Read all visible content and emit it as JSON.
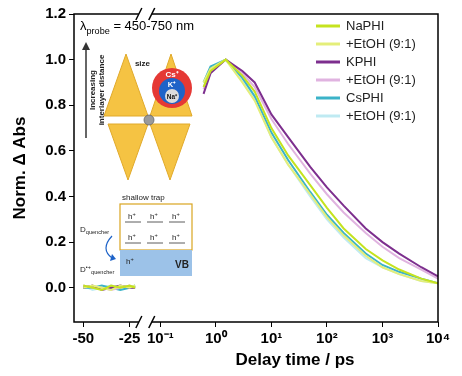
{
  "chart_data": {
    "type": "line",
    "annotation": {
      "main": "λ",
      "sub": "probe",
      "rest": " = 450-750 nm"
    },
    "xlabel": "Delay time / ps",
    "ylabel": "Norm. Δ Abs",
    "x": [
      -50,
      -45,
      -40,
      -35,
      -30,
      -25,
      -22,
      0.6,
      0.8,
      1.5,
      3,
      5,
      10,
      20,
      50,
      100,
      200,
      500,
      1000,
      2000,
      5000,
      10000
    ],
    "series": [
      {
        "name": "NaPHI",
        "color": "#c5e31f",
        "values": [
          0.01,
          0,
          -0.01,
          0.01,
          0,
          0.01,
          0,
          0.88,
          0.95,
          1.0,
          0.93,
          0.86,
          0.7,
          0.58,
          0.45,
          0.35,
          0.26,
          0.17,
          0.12,
          0.08,
          0.04,
          0.02
        ]
      },
      {
        "name": "+EtOH (9:1)",
        "color": "#e4ee7a",
        "values": [
          0,
          0.01,
          0,
          -0.01,
          0.01,
          0,
          0.01,
          0.9,
          0.96,
          1.0,
          0.9,
          0.82,
          0.66,
          0.54,
          0.41,
          0.31,
          0.23,
          0.14,
          0.09,
          0.06,
          0.03,
          0.02
        ]
      },
      {
        "name": "KPHI",
        "color": "#7d2f8e",
        "values": [
          0,
          0.01,
          -0.01,
          0,
          0.01,
          0,
          0,
          0.85,
          0.94,
          1.0,
          0.95,
          0.9,
          0.76,
          0.66,
          0.53,
          0.44,
          0.36,
          0.26,
          0.2,
          0.15,
          0.09,
          0.05
        ]
      },
      {
        "name": "+EtOH (9:1)",
        "color": "#e0b3e0",
        "values": [
          0.01,
          0,
          0,
          -0.01,
          0,
          0.01,
          0,
          0.87,
          0.95,
          1.0,
          0.94,
          0.88,
          0.74,
          0.63,
          0.5,
          0.41,
          0.33,
          0.24,
          0.18,
          0.13,
          0.08,
          0.04
        ]
      },
      {
        "name": "CsPHI",
        "color": "#3bb3c8",
        "values": [
          0,
          0,
          0.01,
          0,
          -0.01,
          0,
          0.01,
          0.9,
          0.97,
          1.0,
          0.92,
          0.84,
          0.68,
          0.56,
          0.42,
          0.32,
          0.24,
          0.15,
          0.1,
          0.07,
          0.04,
          0.02
        ]
      },
      {
        "name": "+EtOH (9:1)",
        "color": "#bfeaf2",
        "values": [
          0.01,
          -0.01,
          0,
          0.01,
          0,
          0,
          0,
          0.88,
          0.96,
          1.0,
          0.91,
          0.83,
          0.66,
          0.54,
          0.4,
          0.3,
          0.22,
          0.13,
          0.09,
          0.06,
          0.03,
          0.02
        ]
      }
    ],
    "xlim": [
      -55,
      10000
    ],
    "x_break": [
      -20,
      0.07
    ],
    "xticks": [
      -50,
      -25,
      {
        "value": 0.1,
        "label": "10⁻¹"
      },
      {
        "value": 1,
        "label": "10⁰"
      },
      {
        "value": 10,
        "label": "10¹"
      },
      {
        "value": 100,
        "label": "10²"
      },
      {
        "value": 1000,
        "label": "10³"
      },
      {
        "value": 10000,
        "label": "10⁴"
      }
    ],
    "ylim": [
      -0.15,
      1.2
    ],
    "yticks": [
      {
        "value": 0,
        "label": "0.0"
      },
      0.2,
      0.4,
      0.6,
      0.8,
      {
        "value": 1,
        "label": "1.0"
      },
      1.2
    ],
    "log": "x",
    "grid": false,
    "legend": "upper right",
    "inset": {
      "axis_label": "Increasing interlayer distance",
      "size_label": "size",
      "ions": [
        "Cs⁺",
        "K⁺",
        "Na⁺"
      ],
      "trap_label": "shallow trap",
      "hole": {
        "main": "h",
        "sup": "+"
      },
      "band": "VB",
      "donor": {
        "main": "D",
        "sub": "quencher"
      },
      "donor_oxidized": {
        "main": "D",
        "sup": "•+",
        "sub": "quencher"
      }
    }
  }
}
